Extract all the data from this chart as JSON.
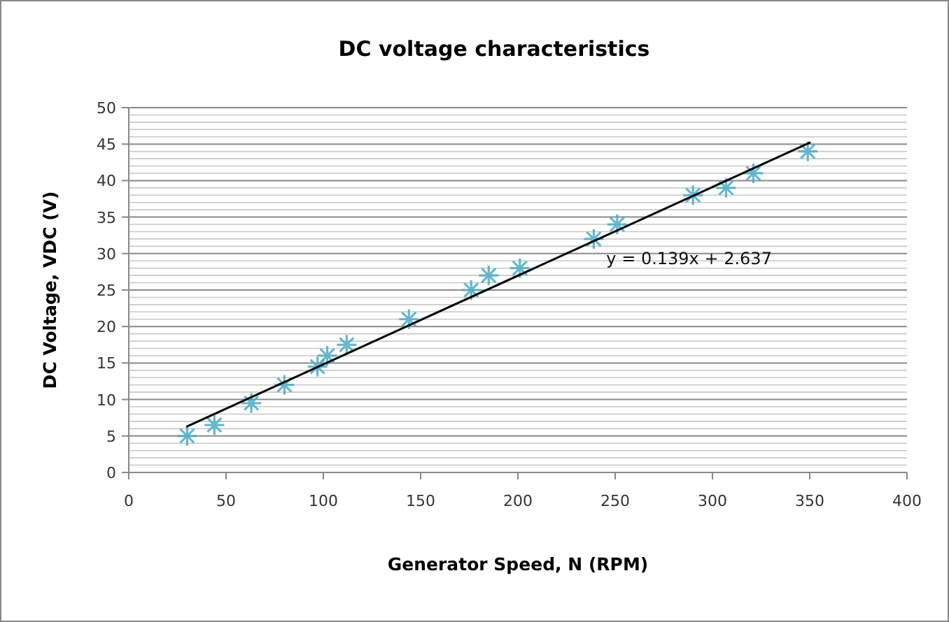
{
  "chart_data": {
    "type": "scatter",
    "title": "DC voltage characteristics",
    "xlabel": "Generator Speed, N (RPM)",
    "ylabel": "DC Voltage, VDC (V)",
    "xlim": [
      0,
      400
    ],
    "xticks": [
      0,
      50,
      100,
      150,
      200,
      250,
      300,
      350,
      400
    ],
    "ylim": [
      0,
      50
    ],
    "yticks": [
      0,
      5,
      10,
      15,
      20,
      25,
      30,
      35,
      40,
      45,
      50
    ],
    "grid": "y",
    "annotations": [
      "y = 0.139x + 2.637"
    ],
    "series": [
      {
        "marker": "cross",
        "color": "#4bacc6",
        "x": [
          30,
          44,
          63,
          80,
          97,
          102,
          112,
          144,
          176,
          185,
          201,
          239,
          251,
          290,
          307,
          321,
          349
        ],
        "values": [
          5,
          6.5,
          9.5,
          12,
          14.5,
          16,
          17.5,
          21,
          25,
          27,
          28,
          32,
          34,
          38,
          39,
          41,
          44
        ]
      },
      {
        "type": "line",
        "color": "#000000",
        "x": [
          30,
          350
        ],
        "values": [
          6.3,
          45.2
        ]
      }
    ]
  }
}
